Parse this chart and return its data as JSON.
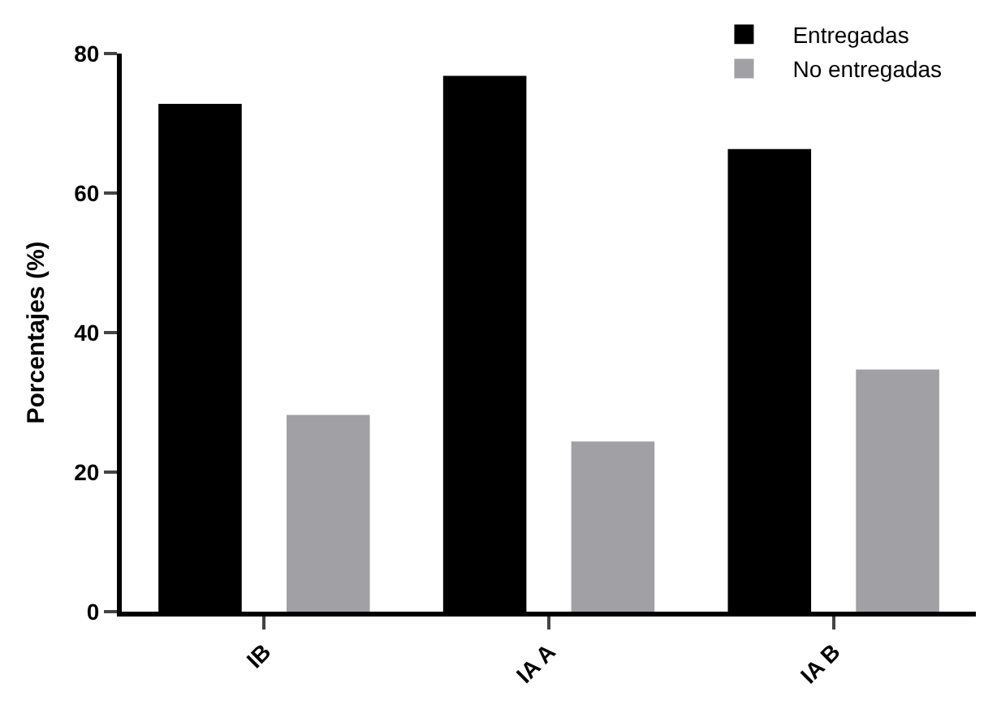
{
  "chart_data": {
    "type": "bar",
    "ylabel": "Porcentajes (%)",
    "categories": [
      "IB",
      "IA A",
      "IA B"
    ],
    "series": [
      {
        "name": "Entregadas",
        "color": "#000000",
        "values": [
          72.8,
          76.8,
          66.3
        ]
      },
      {
        "name": "No entregadas",
        "color": "#a1a0a5",
        "values": [
          28.2,
          24.4,
          34.7
        ]
      }
    ],
    "ylim": [
      0,
      80
    ],
    "yticks": [
      0,
      20,
      40,
      60,
      80
    ],
    "legend": "top right"
  }
}
